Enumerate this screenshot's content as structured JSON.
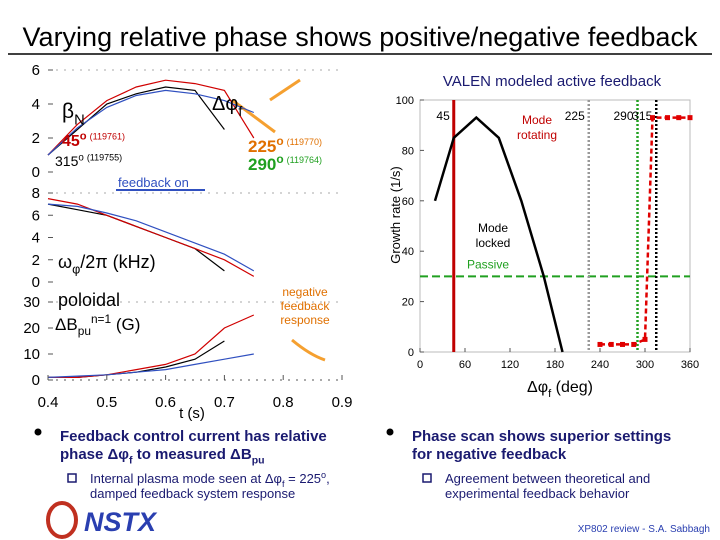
{
  "title": "Varying relative phase shows positive/negative feedback",
  "chart_data": [
    {
      "type": "panels",
      "x": [
        0.4,
        0.45,
        0.5,
        0.55,
        0.6,
        0.65,
        0.7,
        0.75,
        0.8,
        0.85,
        0.9
      ],
      "xlim": [
        0.4,
        0.9
      ],
      "xticks": [
        0.4,
        0.5,
        0.6,
        0.7,
        0.8,
        0.9
      ],
      "xlabel": "t (s)",
      "panels": [
        {
          "ylim": [
            0,
            6
          ],
          "yticks": [
            0,
            2,
            4,
            6
          ],
          "label": [
            "β",
            {
              "sub": "N"
            }
          ],
          "series": [
            {
              "color": "#000000",
              "values": [
                1,
                2.5,
                4,
                4.6,
                5,
                4.8,
                2.5,
                null,
                null,
                null,
                null
              ]
            },
            {
              "color": "#d00000",
              "values": [
                1,
                2.8,
                4.2,
                5,
                5.4,
                5.2,
                4.8,
                2,
                null,
                null,
                null
              ]
            },
            {
              "color": "#3050c0",
              "values": [
                1,
                2.6,
                3.8,
                4.5,
                4.8,
                4.6,
                4.2,
                3.5,
                null,
                null,
                null
              ]
            }
          ]
        },
        {
          "ylim": [
            0,
            8
          ],
          "yticks": [
            0,
            2,
            4,
            6,
            8
          ],
          "label": [
            "ω",
            {
              "sub": "φ"
            },
            "/2π (kHz)"
          ],
          "series": [
            {
              "color": "#000000",
              "values": [
                7,
                6.5,
                6,
                5,
                4,
                3,
                1,
                null,
                null,
                null,
                null
              ]
            },
            {
              "color": "#d00000",
              "values": [
                7.5,
                7,
                6,
                5,
                4,
                3,
                2,
                0.5,
                null,
                null,
                null
              ]
            },
            {
              "color": "#3050c0",
              "values": [
                7,
                6.8,
                6.2,
                5.5,
                4.5,
                3.5,
                2.5,
                1,
                null,
                null,
                null
              ]
            }
          ]
        },
        {
          "ylim": [
            0,
            30
          ],
          "yticks": [
            0,
            10,
            20,
            30
          ],
          "label": [
            "ΔB",
            {
              "sub": "pu"
            },
            {
              "sup": "n=1"
            },
            " (G)"
          ],
          "series": [
            {
              "color": "#000000",
              "values": [
                1,
                1,
                2,
                3,
                5,
                8,
                15,
                null,
                null,
                null,
                null
              ]
            },
            {
              "color": "#d00000",
              "values": [
                1,
                1,
                2,
                4,
                6,
                10,
                20,
                25,
                null,
                null,
                null
              ]
            },
            {
              "color": "#3050c0",
              "values": [
                1,
                1.5,
                2,
                3,
                4,
                6,
                8,
                10,
                null,
                null,
                null
              ]
            }
          ]
        }
      ],
      "annotations": {
        "phase": [
          "Δφ",
          {
            "sub": "f"
          }
        ],
        "shots": [
          {
            "angle": [
              "45",
              {
                "sup": "o"
              }
            ],
            "shot": "(119761)",
            "color": "#c00000"
          },
          {
            "angle": [
              "315",
              {
                "sup": "o"
              }
            ],
            "shot": "(119755)",
            "color": "#000000"
          },
          {
            "angle": [
              "225",
              {
                "sup": "o"
              }
            ],
            "shot": "(119770)",
            "color": "#e07000"
          },
          {
            "angle": [
              "290",
              {
                "sup": "o"
              }
            ],
            "shot": "(119764)",
            "color": "#20a020"
          }
        ],
        "feedback_on": "feedback on",
        "poloidal": "poloidal",
        "negative": [
          "negative",
          "feedback",
          "response"
        ]
      }
    },
    {
      "type": "line",
      "title": "VALEN modeled active feedback",
      "xlabel": [
        "Δφ",
        {
          "sub": "f"
        },
        " (deg)"
      ],
      "ylabel": "Growth rate (1/s)",
      "xlim": [
        0,
        360
      ],
      "xticks": [
        0,
        60,
        120,
        180,
        240,
        300,
        360
      ],
      "ylim": [
        0,
        100
      ],
      "yticks": [
        0,
        20,
        40,
        60,
        80,
        100
      ],
      "series": [
        {
          "color": "#000000",
          "x": [
            20,
            45,
            75,
            105,
            135,
            165,
            190
          ],
          "values": [
            60,
            85,
            93,
            85,
            60,
            30,
            0
          ]
        },
        {
          "color": "#e00000",
          "x": [
            240,
            255,
            270,
            285,
            300,
            310,
            330,
            345,
            360
          ],
          "values": [
            3,
            3,
            3,
            3,
            5,
            93,
            93,
            93,
            93
          ]
        }
      ],
      "phase_lines": [
        {
          "value": 45,
          "color": "#c00000"
        },
        {
          "value": 225,
          "color": "#999999"
        },
        {
          "value": 290,
          "color": "#20a020"
        },
        {
          "value": 315,
          "color": "#000000"
        }
      ],
      "passive": {
        "value": 30,
        "label": "Passive",
        "color": "#20a020"
      },
      "annotations": {
        "rotating": [
          "Mode",
          "rotating"
        ],
        "locked": [
          "Mode",
          "locked"
        ]
      }
    }
  ],
  "bullets": [
    {
      "lines": [
        [
          "Feedback control current has relative"
        ],
        [
          "phase Δφ",
          {
            "sub": "f"
          },
          " to measured ΔB",
          {
            "sub": "pu"
          }
        ]
      ],
      "sub": [
        [
          "Internal plasma mode seen at Δφ",
          {
            "sub": "f"
          },
          " = 225",
          {
            "sup": "o"
          },
          ","
        ],
        [
          "damped feedback system response"
        ]
      ]
    },
    {
      "lines": [
        [
          "Phase scan shows superior settings"
        ],
        [
          "for negative feedback"
        ]
      ],
      "sub": [
        [
          "Agreement between theoretical and"
        ],
        [
          "experimental feedback behavior"
        ]
      ]
    }
  ],
  "footer": {
    "logo": "NSTX",
    "credit": "XP802 review - S.A. Sabbagh"
  }
}
